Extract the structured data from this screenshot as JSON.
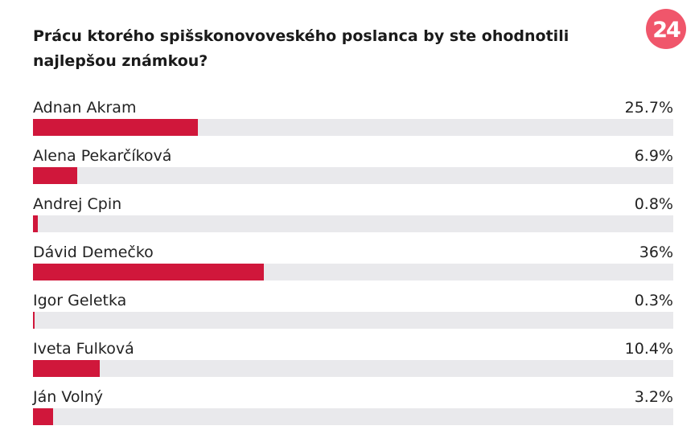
{
  "poll": {
    "question": "Prácu ktorého spišskonovoveského poslanca by ste ohodnotili najlepšou známkou?",
    "logo_text": "24"
  },
  "colors": {
    "bar_fill": "#d0173b",
    "bar_track": "#e9e9ec",
    "logo": "#f0566b"
  },
  "chart_data": {
    "type": "bar",
    "orientation": "horizontal",
    "title": "Prácu ktorého spišskonovoveského poslanca by ste ohodnotili najlepšou známkou?",
    "categories": [
      "Adnan Akram",
      "Alena Pekarčíková",
      "Andrej Cpin",
      "Dávid Demečko",
      "Igor Geletka",
      "Iveta Fulková",
      "Ján Volný"
    ],
    "values": [
      25.7,
      6.9,
      0.8,
      36,
      0.3,
      10.4,
      3.2
    ],
    "value_labels": [
      "25.7%",
      "6.9%",
      "0.8%",
      "36%",
      "0.3%",
      "10.4%",
      "3.2%"
    ],
    "unit": "%",
    "xlim": [
      0,
      100
    ]
  }
}
